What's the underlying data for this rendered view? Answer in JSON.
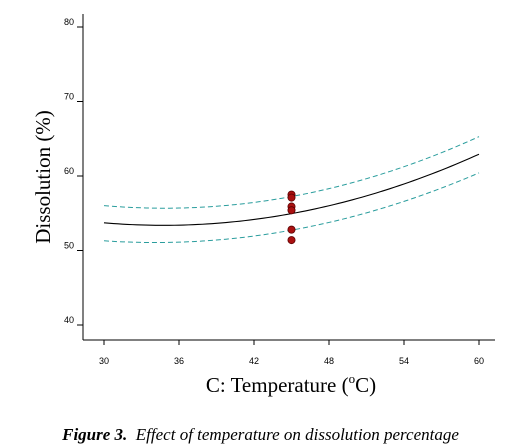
{
  "chart_data": {
    "type": "line",
    "title": "",
    "xlabel": "C: Temperature (",
    "xlabel_unit_sup": "o",
    "xlabel_unit_suffix": "C)",
    "ylabel": "Dissolution (%)",
    "xlim": [
      30,
      60
    ],
    "ylim": [
      40,
      80
    ],
    "xticks": [
      30,
      36,
      42,
      48,
      54,
      60
    ],
    "yticks": [
      40,
      50,
      60,
      70,
      80
    ],
    "grid": false,
    "legend": "none",
    "series": [
      {
        "role": "fit",
        "style": "solid",
        "color": "#000000",
        "x": [
          30,
          33,
          36,
          39,
          42,
          45,
          48,
          51,
          54,
          57,
          60
        ],
        "y": [
          53.7,
          53.4,
          53.4,
          53.7,
          54.2,
          55.0,
          56.0,
          57.3,
          58.8,
          60.8,
          63.0
        ]
      },
      {
        "role": "upper-confidence-band",
        "style": "dashed",
        "color": "#2a9d9d",
        "x": [
          30,
          33,
          36,
          39,
          42,
          45,
          48,
          51,
          54,
          57,
          60
        ],
        "y": [
          56.1,
          55.7,
          55.6,
          55.9,
          56.5,
          57.3,
          58.3,
          59.7,
          61.2,
          63.1,
          65.3
        ]
      },
      {
        "role": "lower-confidence-band",
        "style": "dashed",
        "color": "#2a9d9d",
        "x": [
          30,
          33,
          36,
          39,
          42,
          45,
          48,
          51,
          54,
          57,
          60
        ],
        "y": [
          51.2,
          51.1,
          51.2,
          51.5,
          52.0,
          52.7,
          53.7,
          55.0,
          56.5,
          58.4,
          60.5
        ]
      }
    ],
    "points": {
      "role": "design-points",
      "color": "#aa1111",
      "x": [
        45,
        45,
        45,
        45,
        45,
        45
      ],
      "y": [
        57.5,
        57.1,
        55.9,
        55.4,
        52.8,
        51.4
      ]
    }
  },
  "caption": {
    "lead": "Figure 3.",
    "text": "Effect of temperature on dissolution percentage"
  }
}
